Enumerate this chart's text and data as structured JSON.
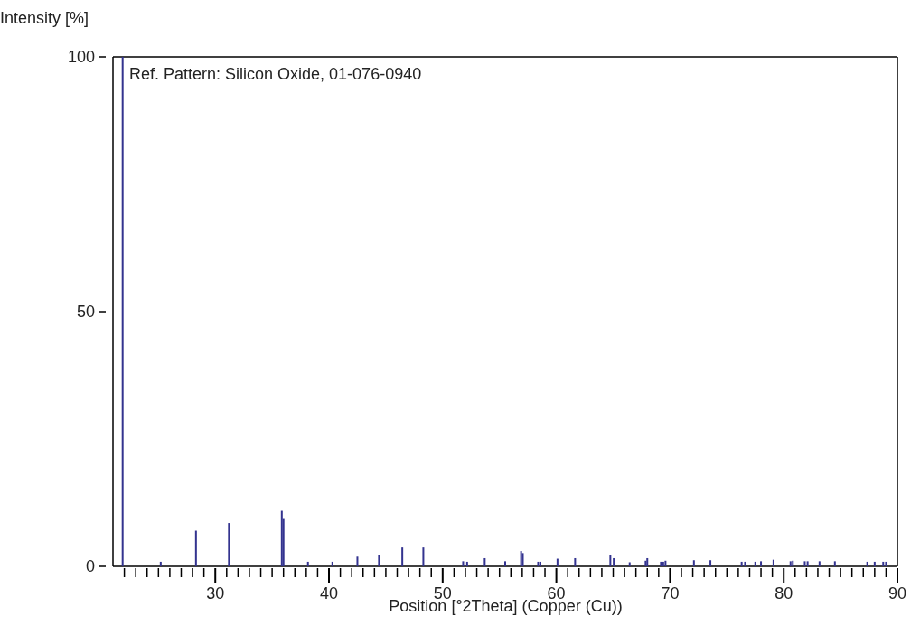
{
  "chart_data": {
    "type": "bar",
    "xlabel": "Position [°2Theta] (Copper (Cu))",
    "ylabel": "Intensity [%]",
    "annotations": [
      "Ref. Pattern: Silicon Oxide, 01-076-0940"
    ],
    "x": [
      21.85,
      25.2,
      28.3,
      31.2,
      35.85,
      36.0,
      38.15,
      40.3,
      42.5,
      44.4,
      46.45,
      48.3,
      51.8,
      52.15,
      53.7,
      55.5,
      56.9,
      57.05,
      58.4,
      58.6,
      60.1,
      61.65,
      64.75,
      65.05,
      66.45,
      67.85,
      68.0,
      69.2,
      69.4,
      69.6,
      72.1,
      73.55,
      76.3,
      76.6,
      77.5,
      78.0,
      79.1,
      80.6,
      80.8,
      81.85,
      82.1,
      83.15,
      84.5,
      87.35,
      88.0,
      88.75,
      89.0
    ],
    "values": [
      100,
      0.9,
      7.0,
      8.5,
      10.9,
      9.3,
      0.9,
      0.9,
      1.9,
      2.2,
      3.7,
      3.7,
      1.0,
      0.9,
      1.6,
      1.0,
      3.0,
      2.6,
      0.9,
      0.9,
      1.5,
      1.6,
      2.2,
      1.6,
      0.8,
      1.1,
      1.6,
      0.9,
      0.9,
      1.1,
      1.2,
      1.2,
      0.9,
      0.9,
      0.9,
      1.0,
      1.3,
      1.0,
      1.1,
      1.0,
      1.0,
      1.0,
      1.0,
      0.9,
      0.9,
      0.9,
      0.9
    ],
    "color": "#33338f",
    "xlim": [
      21,
      90
    ],
    "xticks": [
      {
        "value": 22,
        "label": null
      },
      {
        "value": 23,
        "label": null
      },
      {
        "value": 24,
        "label": null
      },
      {
        "value": 25,
        "label": null
      },
      {
        "value": 26,
        "label": null
      },
      {
        "value": 27,
        "label": null
      },
      {
        "value": 28,
        "label": null
      },
      {
        "value": 29,
        "label": null
      },
      30,
      {
        "value": 31,
        "label": null
      },
      {
        "value": 32,
        "label": null
      },
      {
        "value": 33,
        "label": null
      },
      {
        "value": 34,
        "label": null
      },
      {
        "value": 35,
        "label": null
      },
      {
        "value": 36,
        "label": null
      },
      {
        "value": 37,
        "label": null
      },
      {
        "value": 38,
        "label": null
      },
      {
        "value": 39,
        "label": null
      },
      40,
      {
        "value": 41,
        "label": null
      },
      {
        "value": 42,
        "label": null
      },
      {
        "value": 43,
        "label": null
      },
      {
        "value": 44,
        "label": null
      },
      {
        "value": 45,
        "label": null
      },
      {
        "value": 46,
        "label": null
      },
      {
        "value": 47,
        "label": null
      },
      {
        "value": 48,
        "label": null
      },
      {
        "value": 49,
        "label": null
      },
      50,
      {
        "value": 51,
        "label": null
      },
      {
        "value": 52,
        "label": null
      },
      {
        "value": 53,
        "label": null
      },
      {
        "value": 54,
        "label": null
      },
      {
        "value": 55,
        "label": null
      },
      {
        "value": 56,
        "label": null
      },
      {
        "value": 57,
        "label": null
      },
      {
        "value": 58,
        "label": null
      },
      {
        "value": 59,
        "label": null
      },
      60,
      {
        "value": 61,
        "label": null
      },
      {
        "value": 62,
        "label": null
      },
      {
        "value": 63,
        "label": null
      },
      {
        "value": 64,
        "label": null
      },
      {
        "value": 65,
        "label": null
      },
      {
        "value": 66,
        "label": null
      },
      {
        "value": 67,
        "label": null
      },
      {
        "value": 68,
        "label": null
      },
      {
        "value": 69,
        "label": null
      },
      70,
      {
        "value": 71,
        "label": null
      },
      {
        "value": 72,
        "label": null
      },
      {
        "value": 73,
        "label": null
      },
      {
        "value": 74,
        "label": null
      },
      {
        "value": 75,
        "label": null
      },
      {
        "value": 76,
        "label": null
      },
      {
        "value": 77,
        "label": null
      },
      {
        "value": 78,
        "label": null
      },
      {
        "value": 79,
        "label": null
      },
      80,
      {
        "value": 81,
        "label": null
      },
      {
        "value": 82,
        "label": null
      },
      {
        "value": 83,
        "label": null
      },
      {
        "value": 84,
        "label": null
      },
      {
        "value": 85,
        "label": null
      },
      {
        "value": 86,
        "label": null
      },
      {
        "value": 87,
        "label": null
      },
      {
        "value": 88,
        "label": null
      },
      {
        "value": 89,
        "label": null
      },
      90
    ],
    "ylim": [
      0,
      100
    ],
    "yticks": [
      0,
      50,
      100
    ]
  }
}
